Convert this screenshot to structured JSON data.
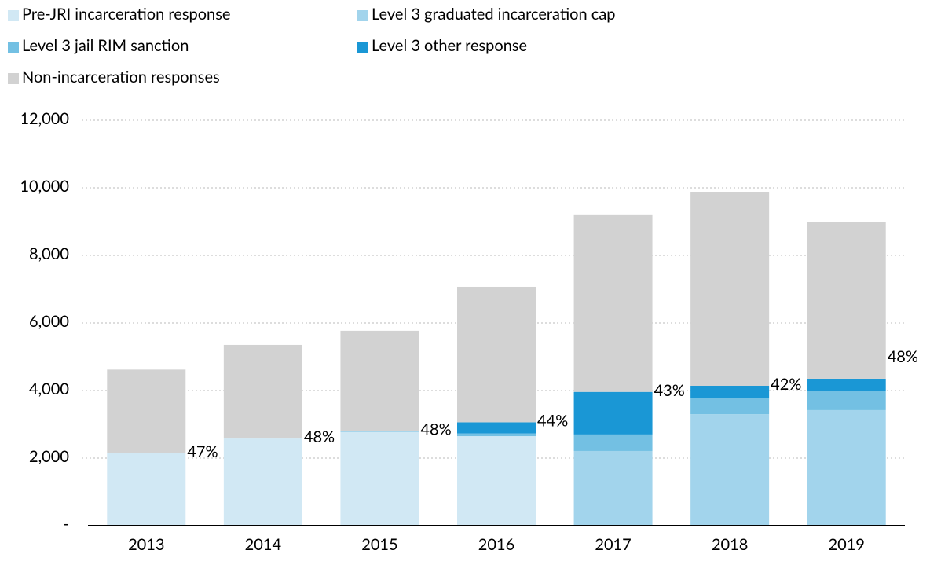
{
  "chart_data": {
    "type": "stacked_bar",
    "categories": [
      "2013",
      "2014",
      "2015",
      "2016",
      "2017",
      "2018",
      "2019"
    ],
    "series": [
      {
        "name": "Pre-JRI incarceration response",
        "color": "#d1e8f4",
        "values": [
          2140,
          2580,
          2780,
          2650,
          0,
          0,
          0
        ]
      },
      {
        "name": "Level 3 graduated incarceration cap",
        "color": "#a2d4ec",
        "values": [
          0,
          0,
          0,
          0,
          2210,
          3300,
          3420
        ]
      },
      {
        "name": "Level 3 jail RIM sanction",
        "color": "#73c0e3",
        "values": [
          0,
          0,
          20,
          80,
          490,
          490,
          560
        ]
      },
      {
        "name": "Level 3 other response",
        "color": "#1a97d5",
        "values": [
          0,
          0,
          0,
          330,
          1260,
          350,
          370
        ]
      },
      {
        "name": "Non-incarceration responses",
        "color": "#d2d2d2",
        "values": [
          2480,
          2770,
          2970,
          4010,
          5230,
          5720,
          4650
        ]
      }
    ],
    "share_labels": [
      "47%",
      "48%",
      "48%",
      "44%",
      "43%",
      "42%",
      "48%"
    ],
    "ylim": [
      0,
      12000
    ],
    "yticks": [
      {
        "value": 0,
        "label": "-"
      },
      {
        "value": 2000,
        "label": "2,000"
      },
      {
        "value": 4000,
        "label": "4,000"
      },
      {
        "value": 6000,
        "label": "6,000"
      },
      {
        "value": 8000,
        "label": "8,000"
      },
      {
        "value": 10000,
        "label": "10,000"
      },
      {
        "value": 12000,
        "label": "12,000"
      }
    ],
    "grid": true
  }
}
